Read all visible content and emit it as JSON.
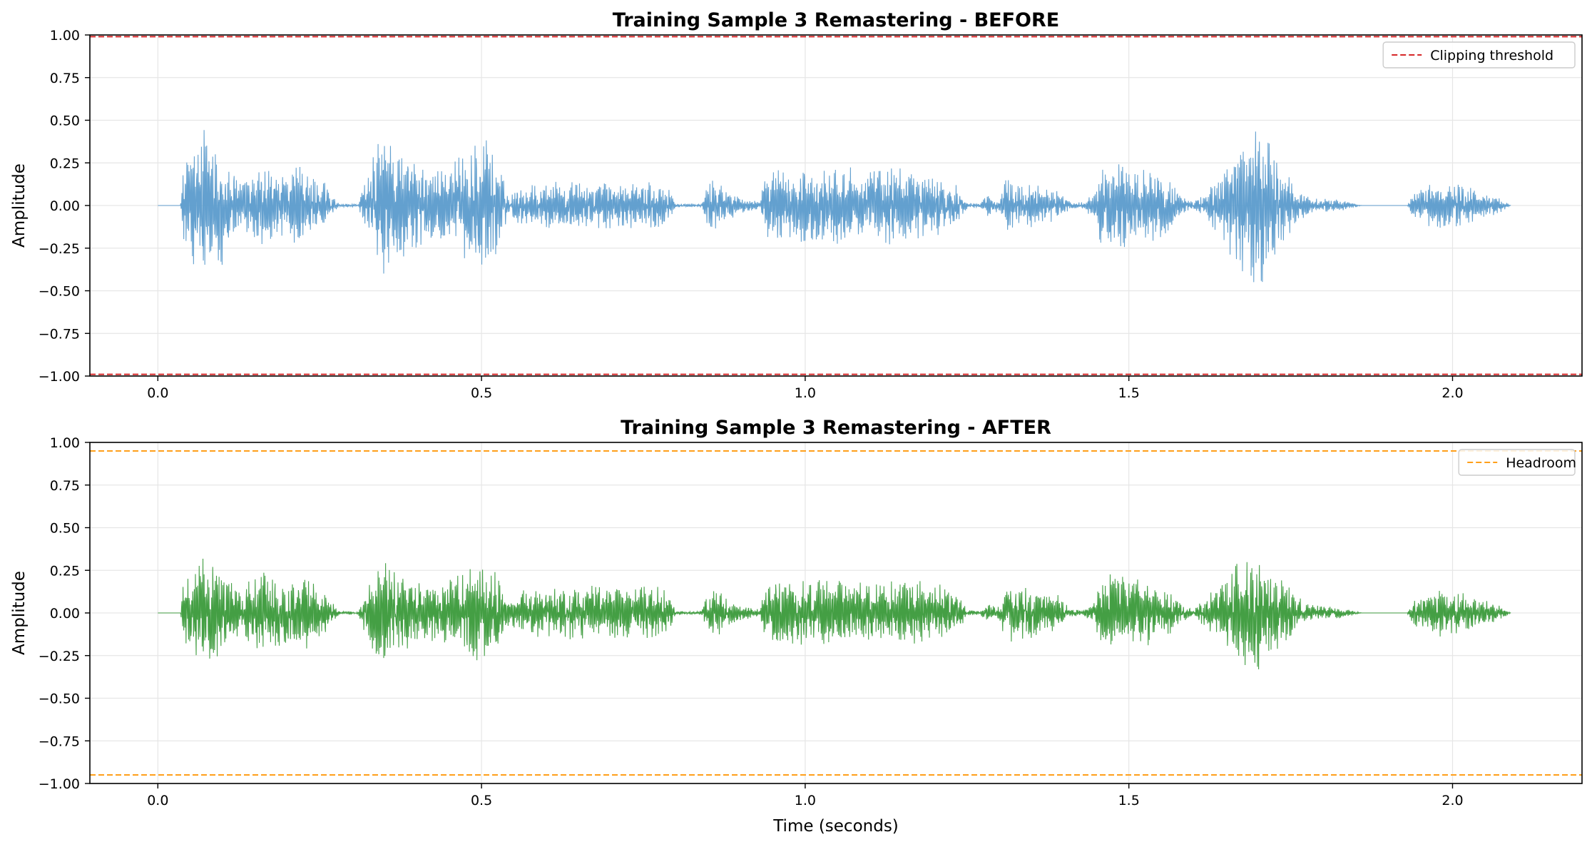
{
  "chart_data": [
    {
      "type": "line",
      "title": "Training Sample 3 Remastering - BEFORE",
      "xlabel": "",
      "ylabel": "Amplitude",
      "xlim": [
        -0.105,
        2.2
      ],
      "ylim": [
        -1.0,
        1.0
      ],
      "xticks": [
        0.0,
        0.5,
        1.0,
        1.5,
        2.0
      ],
      "xtick_labels": [
        "0.0",
        "0.5",
        "1.0",
        "1.5",
        "2.0"
      ],
      "yticks": [
        1.0,
        0.75,
        0.5,
        0.25,
        0.0,
        -0.25,
        -0.5,
        -0.75,
        -1.0
      ],
      "ytick_labels": [
        "1.00",
        "0.75",
        "0.50",
        "0.25",
        "0.00",
        "−0.25",
        "−0.50",
        "−0.75",
        "−1.00"
      ],
      "grid": true,
      "legend": {
        "placement": "upper-right",
        "entries": [
          "Clipping threshold"
        ]
      },
      "waveform": {
        "color": "#5b9bcc",
        "duration": 2.09,
        "envelope": [
          [
            0.0,
            0.0
          ],
          [
            0.035,
            0.0
          ],
          [
            0.04,
            0.28
          ],
          [
            0.05,
            0.3
          ],
          [
            0.06,
            0.45
          ],
          [
            0.07,
            0.5
          ],
          [
            0.085,
            0.48
          ],
          [
            0.1,
            0.35
          ],
          [
            0.115,
            0.25
          ],
          [
            0.13,
            0.15
          ],
          [
            0.14,
            0.2
          ],
          [
            0.16,
            0.25
          ],
          [
            0.18,
            0.23
          ],
          [
            0.2,
            0.22
          ],
          [
            0.22,
            0.24
          ],
          [
            0.24,
            0.2
          ],
          [
            0.255,
            0.16
          ],
          [
            0.27,
            0.06
          ],
          [
            0.28,
            0.01
          ],
          [
            0.31,
            0.01
          ],
          [
            0.315,
            0.08
          ],
          [
            0.33,
            0.25
          ],
          [
            0.34,
            0.42
          ],
          [
            0.355,
            0.4
          ],
          [
            0.37,
            0.35
          ],
          [
            0.39,
            0.3
          ],
          [
            0.41,
            0.25
          ],
          [
            0.43,
            0.2
          ],
          [
            0.45,
            0.25
          ],
          [
            0.47,
            0.3
          ],
          [
            0.49,
            0.36
          ],
          [
            0.51,
            0.42
          ],
          [
            0.525,
            0.35
          ],
          [
            0.535,
            0.15
          ],
          [
            0.545,
            0.08
          ],
          [
            0.56,
            0.12
          ],
          [
            0.6,
            0.14
          ],
          [
            0.66,
            0.14
          ],
          [
            0.72,
            0.14
          ],
          [
            0.78,
            0.14
          ],
          [
            0.79,
            0.1
          ],
          [
            0.8,
            0.01
          ],
          [
            0.84,
            0.01
          ],
          [
            0.855,
            0.2
          ],
          [
            0.87,
            0.12
          ],
          [
            0.9,
            0.05
          ],
          [
            0.93,
            0.02
          ],
          [
            0.94,
            0.22
          ],
          [
            0.98,
            0.23
          ],
          [
            1.05,
            0.24
          ],
          [
            1.12,
            0.24
          ],
          [
            1.17,
            0.22
          ],
          [
            1.19,
            0.2
          ],
          [
            1.21,
            0.18
          ],
          [
            1.235,
            0.12
          ],
          [
            1.25,
            0.02
          ],
          [
            1.27,
            0.01
          ],
          [
            1.28,
            0.07
          ],
          [
            1.3,
            0.04
          ],
          [
            1.31,
            0.16
          ],
          [
            1.35,
            0.13
          ],
          [
            1.39,
            0.1
          ],
          [
            1.41,
            0.02
          ],
          [
            1.43,
            0.02
          ],
          [
            1.445,
            0.08
          ],
          [
            1.46,
            0.27
          ],
          [
            1.5,
            0.25
          ],
          [
            1.53,
            0.22
          ],
          [
            1.56,
            0.18
          ],
          [
            1.58,
            0.06
          ],
          [
            1.6,
            0.02
          ],
          [
            1.62,
            0.1
          ],
          [
            1.64,
            0.2
          ],
          [
            1.66,
            0.38
          ],
          [
            1.68,
            0.45
          ],
          [
            1.7,
            0.5
          ],
          [
            1.72,
            0.4
          ],
          [
            1.74,
            0.25
          ],
          [
            1.76,
            0.1
          ],
          [
            1.78,
            0.05
          ],
          [
            1.8,
            0.04
          ],
          [
            1.82,
            0.04
          ],
          [
            1.84,
            0.02
          ],
          [
            1.86,
            0.0
          ],
          [
            1.93,
            0.0
          ],
          [
            1.94,
            0.08
          ],
          [
            1.97,
            0.14
          ],
          [
            2.0,
            0.13
          ],
          [
            2.04,
            0.1
          ],
          [
            2.07,
            0.05
          ],
          [
            2.09,
            0.0
          ]
        ]
      },
      "reference_lines": [
        {
          "label": "Clipping threshold",
          "y": 0.99,
          "color": "#d62728",
          "style": "dashed"
        },
        {
          "label": "",
          "y": -0.99,
          "color": "#d62728",
          "style": "dashed"
        }
      ]
    },
    {
      "type": "line",
      "title": "Training Sample 3 Remastering - AFTER",
      "xlabel": "Time (seconds)",
      "ylabel": "Amplitude",
      "xlim": [
        -0.105,
        2.2
      ],
      "ylim": [
        -1.0,
        1.0
      ],
      "xticks": [
        0.0,
        0.5,
        1.0,
        1.5,
        2.0
      ],
      "xtick_labels": [
        "0.0",
        "0.5",
        "1.0",
        "1.5",
        "2.0"
      ],
      "yticks": [
        1.0,
        0.75,
        0.5,
        0.25,
        0.0,
        -0.25,
        -0.5,
        -0.75,
        -1.0
      ],
      "ytick_labels": [
        "1.00",
        "0.75",
        "0.50",
        "0.25",
        "0.00",
        "−0.25",
        "−0.50",
        "−0.75",
        "−1.00"
      ],
      "grid": true,
      "legend": {
        "placement": "upper-right",
        "entries": [
          "Headroom"
        ]
      },
      "waveform": {
        "color": "#3a9a3a",
        "duration": 2.09,
        "envelope": [
          [
            0.0,
            0.0
          ],
          [
            0.035,
            0.0
          ],
          [
            0.04,
            0.2
          ],
          [
            0.05,
            0.22
          ],
          [
            0.06,
            0.28
          ],
          [
            0.07,
            0.33
          ],
          [
            0.085,
            0.32
          ],
          [
            0.1,
            0.24
          ],
          [
            0.115,
            0.18
          ],
          [
            0.13,
            0.12
          ],
          [
            0.14,
            0.2
          ],
          [
            0.16,
            0.24
          ],
          [
            0.18,
            0.24
          ],
          [
            0.2,
            0.23
          ],
          [
            0.22,
            0.23
          ],
          [
            0.24,
            0.2
          ],
          [
            0.255,
            0.16
          ],
          [
            0.27,
            0.06
          ],
          [
            0.28,
            0.01
          ],
          [
            0.31,
            0.01
          ],
          [
            0.315,
            0.08
          ],
          [
            0.33,
            0.22
          ],
          [
            0.34,
            0.3
          ],
          [
            0.355,
            0.29
          ],
          [
            0.37,
            0.26
          ],
          [
            0.39,
            0.22
          ],
          [
            0.41,
            0.18
          ],
          [
            0.43,
            0.17
          ],
          [
            0.45,
            0.2
          ],
          [
            0.47,
            0.25
          ],
          [
            0.49,
            0.28
          ],
          [
            0.51,
            0.3
          ],
          [
            0.525,
            0.24
          ],
          [
            0.535,
            0.12
          ],
          [
            0.545,
            0.07
          ],
          [
            0.56,
            0.14
          ],
          [
            0.6,
            0.16
          ],
          [
            0.66,
            0.16
          ],
          [
            0.72,
            0.16
          ],
          [
            0.78,
            0.16
          ],
          [
            0.79,
            0.1
          ],
          [
            0.8,
            0.01
          ],
          [
            0.84,
            0.01
          ],
          [
            0.855,
            0.18
          ],
          [
            0.87,
            0.12
          ],
          [
            0.9,
            0.05
          ],
          [
            0.93,
            0.02
          ],
          [
            0.94,
            0.2
          ],
          [
            0.98,
            0.2
          ],
          [
            1.05,
            0.2
          ],
          [
            1.12,
            0.2
          ],
          [
            1.17,
            0.2
          ],
          [
            1.19,
            0.18
          ],
          [
            1.21,
            0.17
          ],
          [
            1.235,
            0.12
          ],
          [
            1.25,
            0.02
          ],
          [
            1.27,
            0.01
          ],
          [
            1.28,
            0.06
          ],
          [
            1.3,
            0.04
          ],
          [
            1.31,
            0.18
          ],
          [
            1.35,
            0.15
          ],
          [
            1.39,
            0.12
          ],
          [
            1.41,
            0.02
          ],
          [
            1.43,
            0.02
          ],
          [
            1.445,
            0.06
          ],
          [
            1.46,
            0.23
          ],
          [
            1.5,
            0.23
          ],
          [
            1.53,
            0.2
          ],
          [
            1.56,
            0.16
          ],
          [
            1.58,
            0.06
          ],
          [
            1.6,
            0.02
          ],
          [
            1.62,
            0.1
          ],
          [
            1.64,
            0.18
          ],
          [
            1.66,
            0.3
          ],
          [
            1.68,
            0.33
          ],
          [
            1.7,
            0.34
          ],
          [
            1.72,
            0.28
          ],
          [
            1.74,
            0.2
          ],
          [
            1.76,
            0.1
          ],
          [
            1.78,
            0.05
          ],
          [
            1.8,
            0.04
          ],
          [
            1.82,
            0.04
          ],
          [
            1.84,
            0.02
          ],
          [
            1.86,
            0.0
          ],
          [
            1.93,
            0.0
          ],
          [
            1.94,
            0.08
          ],
          [
            1.97,
            0.15
          ],
          [
            2.0,
            0.13
          ],
          [
            2.04,
            0.1
          ],
          [
            2.07,
            0.05
          ],
          [
            2.09,
            0.0
          ]
        ]
      },
      "reference_lines": [
        {
          "label": "Headroom",
          "y": 0.95,
          "color": "#ff9f1a",
          "style": "dashed"
        },
        {
          "label": "",
          "y": -0.95,
          "color": "#ff9f1a",
          "style": "dashed"
        }
      ]
    }
  ]
}
